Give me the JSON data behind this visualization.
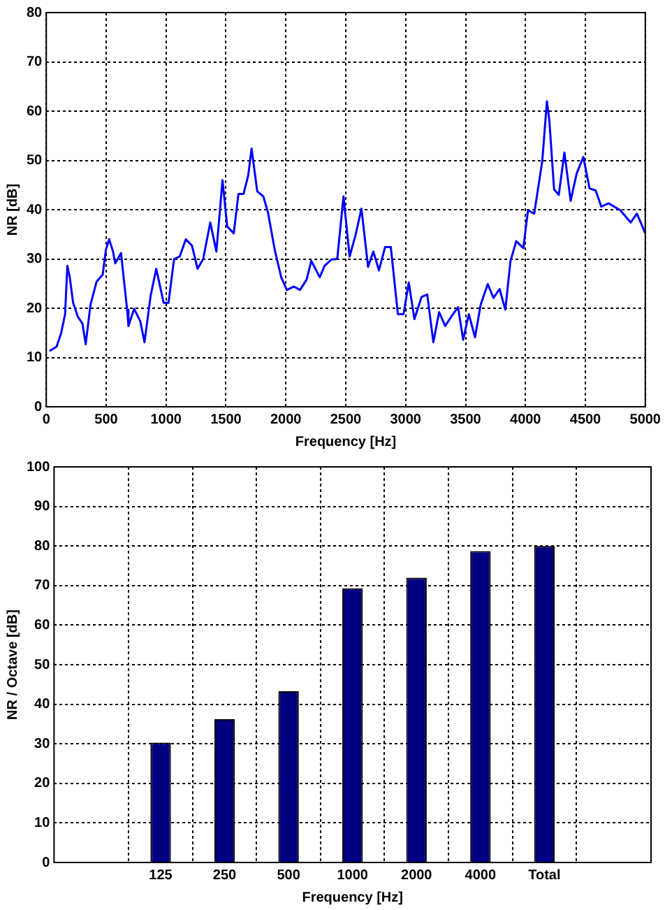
{
  "chart_data": [
    {
      "type": "line",
      "xlabel": "Frequency [Hz]",
      "ylabel": "NR [dB]",
      "xlim": [
        0,
        5000
      ],
      "xticks": [
        0,
        500,
        1000,
        1500,
        2000,
        2500,
        3000,
        3500,
        4000,
        4500,
        5000
      ],
      "ylim": [
        0,
        80
      ],
      "yticks": [
        0,
        10,
        20,
        30,
        40,
        50,
        60,
        70,
        80
      ],
      "grid": true,
      "legend": false,
      "marker": "none",
      "line_style": "solid",
      "series": [
        {
          "color": "#0000ff",
          "x": [
            27,
            86,
            125,
            157,
            176,
            196,
            224,
            263,
            302,
            329,
            369,
            420,
            471,
            498,
            525,
            557,
            576,
            624,
            675,
            686,
            733,
            784,
            820,
            871,
            918,
            980,
            1020,
            1067,
            1114,
            1165,
            1216,
            1263,
            1310,
            1369,
            1420,
            1471,
            1510,
            1565,
            1604,
            1647,
            1686,
            1714,
            1761,
            1812,
            1851,
            1910,
            1961,
            2008,
            2067,
            2118,
            2173,
            2212,
            2283,
            2323,
            2382,
            2429,
            2481,
            2532,
            2580,
            2631,
            2686,
            2730,
            2777,
            2828,
            2876,
            2935,
            2982,
            3026,
            3073,
            3133,
            3180,
            3231,
            3279,
            3330,
            3381,
            3437,
            3480,
            3527,
            3579,
            3626,
            3685,
            3733,
            3784,
            3832,
            3875,
            3923,
            3982,
            4021,
            4073,
            4140,
            4179,
            4199,
            4239,
            4278,
            4325,
            4377,
            4428,
            4483,
            4535,
            4586,
            4633,
            4693,
            4791,
            4878,
            4930,
            5000
          ],
          "values": [
            11.3,
            12.2,
            15,
            18.8,
            28.6,
            26.3,
            21.1,
            18.3,
            16.9,
            12.7,
            20.7,
            25.4,
            26.8,
            31.9,
            34,
            31.5,
            29.1,
            31.2,
            19.7,
            16.4,
            19.9,
            17.4,
            13.1,
            22.5,
            28,
            21.1,
            21.1,
            30,
            30.5,
            34,
            32.7,
            28,
            30,
            37.4,
            31.5,
            46,
            36.6,
            35.2,
            43.2,
            43.2,
            47,
            52.4,
            43.7,
            42.7,
            39.4,
            31.5,
            26.3,
            23.7,
            24.4,
            23.7,
            25.8,
            29.6,
            26.3,
            28.6,
            29.9,
            30,
            42.7,
            30.5,
            34.7,
            40.2,
            28.4,
            31.5,
            27.7,
            32.4,
            32.4,
            18.8,
            18.8,
            25.2,
            17.8,
            22.3,
            22.8,
            13.1,
            19.2,
            16.4,
            18.3,
            20.2,
            13.6,
            18.8,
            14.1,
            20.7,
            24.9,
            22.1,
            23.9,
            19.7,
            29.6,
            33.6,
            32.2,
            39.9,
            39.2,
            49.8,
            62,
            58.2,
            44.1,
            43,
            51.6,
            41.8,
            47.4,
            50.7,
            44.3,
            43.9,
            40.6,
            41.3,
            39.9,
            37.4,
            39.2,
            35.2
          ]
        }
      ]
    },
    {
      "type": "bar",
      "xlabel": "Frequency [Hz]",
      "ylabel": "NR / Octave [dB]",
      "categories": [
        "125",
        "250",
        "500",
        "1000",
        "2000",
        "4000",
        "Total"
      ],
      "ylim": [
        0,
        100
      ],
      "yticks": [
        0,
        10,
        20,
        30,
        40,
        50,
        60,
        70,
        80,
        90,
        100
      ],
      "grid": true,
      "legend": false,
      "series": [
        {
          "color": "#000080",
          "values": [
            30.3,
            36.2,
            43.3,
            69.3,
            72,
            78.7,
            80
          ]
        }
      ]
    }
  ]
}
